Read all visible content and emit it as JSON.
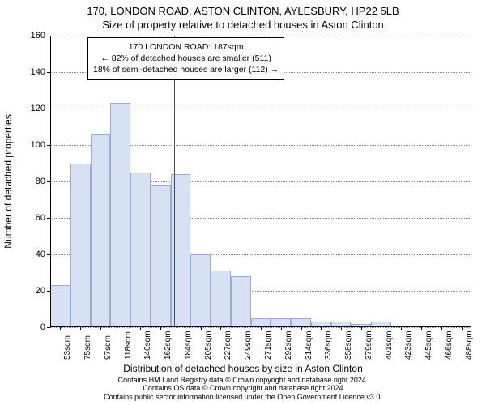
{
  "title_line1": "170, LONDON ROAD, ASTON CLINTON, AYLESBURY, HP22 5LB",
  "title_line2": "Size of property relative to detached houses in Aston Clinton",
  "ylabel": "Number of detached properties",
  "xlabel": "Distribution of detached houses by size in Aston Clinton",
  "footer_line1": "Contains HM Land Registry data © Crown copyright and database right 2024.",
  "footer_line2": "Contains OS data © Crown copyright and database right 2024",
  "footer_line3": "Contains public sector information licensed under the Open Government Licence v3.0.",
  "annotation": {
    "line1": "170 LONDON ROAD: 187sqm",
    "line2": "← 82% of detached houses are smaller (511)",
    "line3": "18% of semi-detached houses are larger (112) →"
  },
  "chart": {
    "type": "histogram",
    "x_start": 53,
    "x_step": 21.75,
    "x_count": 21,
    "x_unit": "sqm",
    "ylim": [
      0,
      160
    ],
    "ytick_step": 20,
    "grid_color": "#7f7f7f",
    "background_color": "#ffffff",
    "bar_fill": "#d7e1f4",
    "bar_border": "#97add6",
    "ref_line_color": "#ff0000",
    "ref_line_value": 187,
    "values": [
      23,
      90,
      106,
      123,
      85,
      78,
      84,
      40,
      31,
      28,
      5,
      5,
      5,
      3,
      3,
      2,
      3,
      0,
      0,
      0,
      0
    ],
    "x_tick_labels": [
      "53sqm",
      "75sqm",
      "97sqm",
      "118sqm",
      "140sqm",
      "162sqm",
      "184sqm",
      "205sqm",
      "227sqm",
      "249sqm",
      "271sqm",
      "292sqm",
      "314sqm",
      "336sqm",
      "358sqm",
      "379sqm",
      "401sqm",
      "423sqm",
      "445sqm",
      "466sqm",
      "488sqm"
    ],
    "title_fontsize": 13,
    "label_fontsize": 12,
    "tick_fontsize": 11
  }
}
